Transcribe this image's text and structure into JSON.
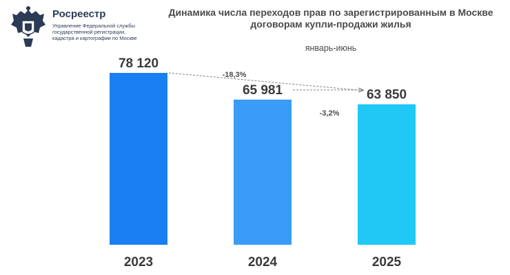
{
  "logo": {
    "brand": "Росреестр",
    "subtitle": "Управление Федеральной службы государственной регистрации, кадастра и картографии по Москве"
  },
  "colors": {
    "bar_2023": "#1a7ff3",
    "bar_2024": "#3a9cf7",
    "bar_2025": "#1fc8f5",
    "annotation": "#808080"
  },
  "chart_data": {
    "type": "bar",
    "title": "Динамика числа переходов прав по зарегистрированным в Москве договорам купли-продажи жилья",
    "subtitle": "январь-июнь",
    "categories": [
      "2023",
      "2024",
      "2025"
    ],
    "values": [
      78120,
      65981,
      63850
    ],
    "value_labels": [
      "78 120",
      "65 981",
      "63 850"
    ],
    "annotations": [
      {
        "text": "-18,3%",
        "from": "2023",
        "to": "2025"
      },
      {
        "text": "-3,2%",
        "from": "2024",
        "to": "2025"
      }
    ],
    "ylim": [
      0,
      80000
    ],
    "grid": false,
    "legend": "none"
  }
}
